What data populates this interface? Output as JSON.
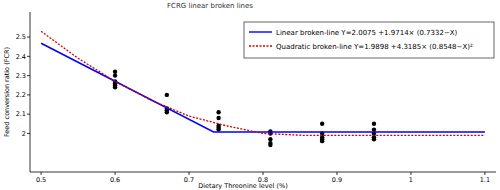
{
  "chart_data": {
    "type": "scatter",
    "title": "FCRG  linear broken lines",
    "x_label": "Dietary Threonine level (%)",
    "y_label": "Feed conversion ratio (FCR)",
    "xlim": [
      0.485,
      1.115
    ],
    "ylim": [
      1.8,
      2.63
    ],
    "xticks": [
      0.5,
      0.6,
      0.7,
      0.8,
      0.9,
      1,
      1.1
    ],
    "yticks": [
      2,
      2.1,
      2.2,
      2.3,
      2.4,
      2.5
    ],
    "legend": "top-right",
    "series": [
      {
        "type": "scatter",
        "color": "#000000",
        "marker": "circle",
        "x": [
          0.6,
          0.6,
          0.6,
          0.6,
          0.6,
          0.6,
          0.67,
          0.67,
          0.67,
          0.67,
          0.74,
          0.74,
          0.74,
          0.74,
          0.74,
          0.81,
          0.81,
          0.81,
          0.81,
          0.81,
          0.88,
          0.88,
          0.88,
          0.88,
          0.88,
          0.95,
          0.95,
          0.95,
          0.95,
          0.95
        ],
        "values": [
          2.32,
          2.3,
          2.27,
          2.26,
          2.25,
          2.24,
          2.2,
          2.13,
          2.12,
          2.11,
          2.11,
          2.08,
          2.04,
          2.03,
          2.02,
          2.01,
          2.0,
          1.97,
          1.95,
          1.94,
          2.05,
          2.0,
          1.98,
          1.97,
          1.96,
          2.05,
          2.02,
          2.0,
          1.98,
          1.97
        ]
      },
      {
        "name": "Linear broken-line Y=2.0075 +1.9714× (0.7332−X)",
        "type": "line",
        "color": "#0000ff",
        "line_style": "solid",
        "x": [
          0.5,
          0.7332,
          1.1
        ],
        "values": [
          2.4675,
          2.0075,
          2.0075
        ]
      },
      {
        "name": "Quadratic broken-line Y=1.9898 +4.3185× (0.8548−X)²",
        "type": "line",
        "color": "#cc0000",
        "line_style": "dotted",
        "x": [
          0.5,
          0.55,
          0.6,
          0.65,
          0.7,
          0.75,
          0.8,
          0.8548,
          1.1
        ],
        "values": [
          2.53,
          2.39,
          2.27,
          2.17,
          2.09,
          2.04,
          2.0,
          1.99,
          1.99
        ]
      }
    ]
  }
}
